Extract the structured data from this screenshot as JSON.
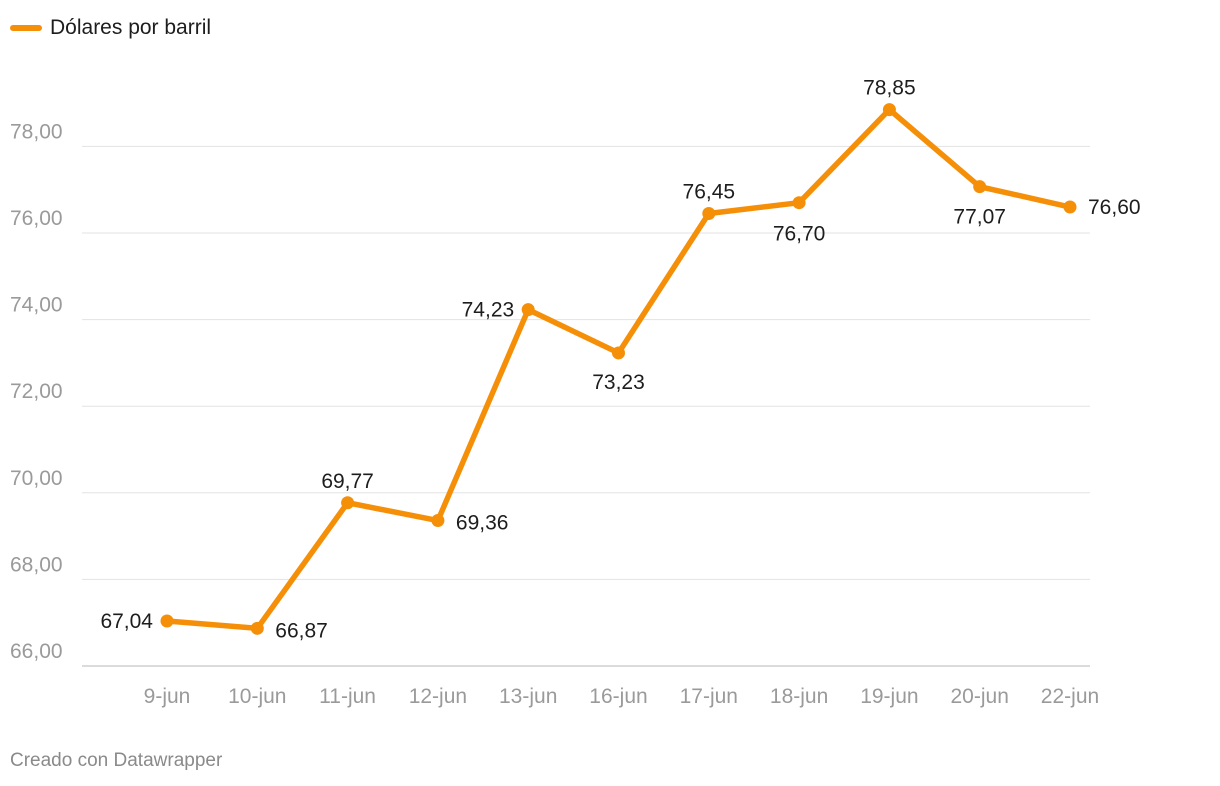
{
  "legend": {
    "label": "Dólares por barril",
    "color": "#f58f08"
  },
  "footer": {
    "credit": "Creado con Datawrapper"
  },
  "chart_data": {
    "type": "line",
    "categories": [
      "9-jun",
      "10-jun",
      "11-jun",
      "12-jun",
      "13-jun",
      "16-jun",
      "17-jun",
      "18-jun",
      "19-jun",
      "20-jun",
      "22-jun"
    ],
    "series": [
      {
        "name": "Dólares por barril",
        "values": [
          67.04,
          66.87,
          69.77,
          69.36,
          74.23,
          73.23,
          76.45,
          76.7,
          78.85,
          77.07,
          76.6
        ],
        "value_labels": [
          "67,04",
          "66,87",
          "69,77",
          "69,36",
          "74,23",
          "73,23",
          "76,45",
          "76,70",
          "78,85",
          "77,07",
          "76,60"
        ],
        "color": "#f58f08"
      }
    ],
    "y_ticks": [
      66,
      68,
      70,
      72,
      74,
      76,
      78
    ],
    "y_tick_labels": [
      "66,00",
      "68,00",
      "70,00",
      "72,00",
      "74,00",
      "76,00",
      "78,00"
    ],
    "ylim": [
      66,
      79.2
    ],
    "grid": true,
    "legend_position": "top-left",
    "title": "",
    "xlabel": "",
    "ylabel": ""
  }
}
